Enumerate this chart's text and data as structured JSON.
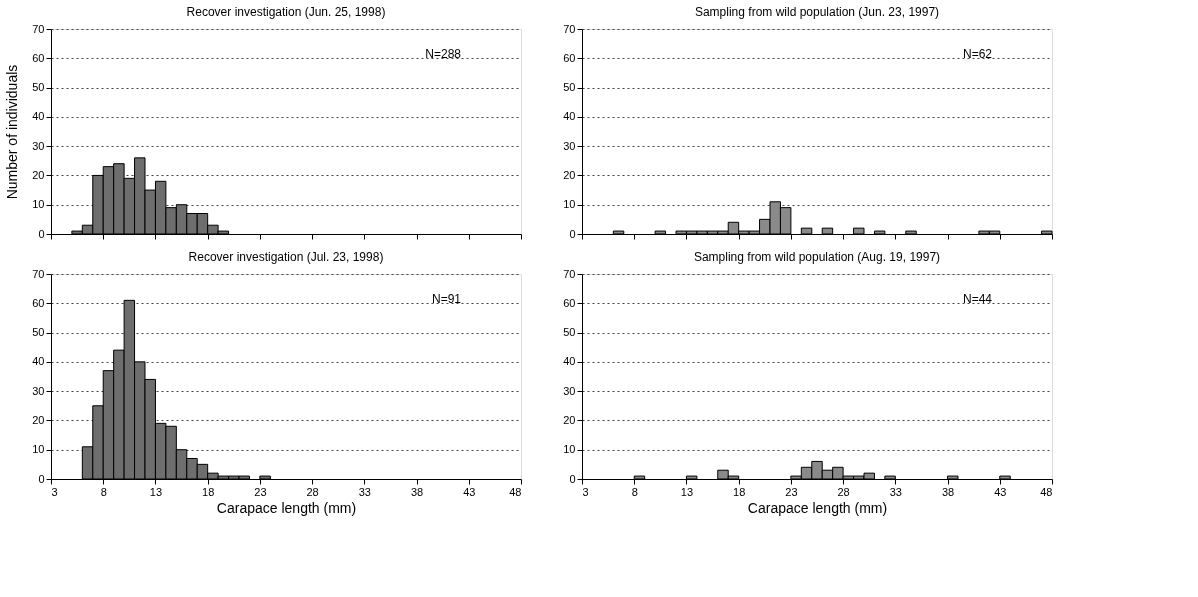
{
  "chart_data": [
    {
      "type": "histogram",
      "title": "Recover investigation (Jun. 25, 1998)",
      "ylabel": "Number of individuals",
      "bins": [
        5,
        6,
        7,
        8,
        9,
        10,
        11,
        12,
        13,
        14,
        15,
        16,
        17,
        18,
        19,
        20
      ],
      "values": [
        1,
        3,
        20,
        23,
        24,
        19,
        26,
        15,
        18,
        9,
        10,
        7,
        7,
        3,
        1
      ],
      "color": "#6e6e6e",
      "xlim": [
        3,
        48
      ],
      "xticks": [
        3,
        8,
        13,
        18,
        23,
        28,
        33,
        38,
        43,
        48
      ],
      "ylim": [
        0,
        70
      ],
      "yticks": [
        0,
        10,
        20,
        30,
        40,
        50,
        60,
        70
      ],
      "grid": "y",
      "tick_labels": "y",
      "annotations": [
        "N=288"
      ]
    },
    {
      "type": "histogram",
      "title": "Sampling from wild population (Jun. 23, 1997)",
      "bins": [
        6,
        7,
        8,
        9,
        10,
        11,
        12,
        13,
        14,
        15,
        16,
        17,
        18,
        19,
        20,
        21,
        22,
        23,
        24,
        25,
        26,
        27,
        28,
        29,
        30,
        31,
        32,
        33,
        34,
        35,
        36,
        37,
        38,
        39,
        40,
        41,
        42,
        43,
        44,
        45,
        46,
        47,
        48
      ],
      "values": [
        1,
        0,
        0,
        0,
        1,
        0,
        1,
        1,
        1,
        1,
        1,
        4,
        1,
        1,
        5,
        11,
        9,
        0,
        2,
        0,
        2,
        0,
        0,
        2,
        0,
        1,
        0,
        0,
        1,
        0,
        0,
        0,
        0,
        0,
        0,
        1,
        1,
        0,
        0,
        0,
        0,
        1
      ],
      "color": "#8a8a8a",
      "xlim": [
        3,
        48
      ],
      "xticks": [
        3,
        8,
        13,
        18,
        23,
        28,
        33,
        38,
        43,
        48
      ],
      "ylim": [
        0,
        70
      ],
      "yticks": [
        0,
        10,
        20,
        30,
        40,
        50,
        60,
        70
      ],
      "grid": "y",
      "tick_labels": "y",
      "annotations": [
        "N=62"
      ]
    },
    {
      "type": "histogram",
      "title": "Recover investigation (Jul. 23, 1998)",
      "xlabel": "Carapace length (mm)",
      "bins": [
        6,
        7,
        8,
        9,
        10,
        11,
        12,
        13,
        14,
        15,
        16,
        17,
        18,
        19,
        20,
        21,
        22,
        23,
        24
      ],
      "values": [
        11,
        25,
        37,
        44,
        61,
        40,
        34,
        19,
        18,
        10,
        7,
        5,
        2,
        1,
        1,
        1,
        0,
        1
      ],
      "color": "#6e6e6e",
      "xlim": [
        3,
        48
      ],
      "xticks": [
        3,
        8,
        13,
        18,
        23,
        28,
        33,
        38,
        43,
        48
      ],
      "ylim": [
        0,
        70
      ],
      "yticks": [
        0,
        10,
        20,
        30,
        40,
        50,
        60,
        70
      ],
      "grid": "y",
      "annotations": [
        "N=91"
      ]
    },
    {
      "type": "histogram",
      "title": "Sampling from wild population (Aug. 19, 1997)",
      "xlabel": "Carapace length (mm)",
      "bins": [
        8,
        9,
        10,
        11,
        12,
        13,
        14,
        15,
        16,
        17,
        18,
        19,
        20,
        21,
        22,
        23,
        24,
        25,
        26,
        27,
        28,
        29,
        30,
        31,
        32,
        33,
        34,
        35,
        36,
        37,
        38,
        39,
        40,
        41,
        42,
        43,
        44
      ],
      "values": [
        1,
        0,
        0,
        0,
        0,
        1,
        0,
        0,
        3,
        1,
        0,
        0,
        0,
        0,
        0,
        1,
        4,
        6,
        3,
        4,
        1,
        1,
        2,
        0,
        1,
        0,
        0,
        0,
        0,
        0,
        1,
        0,
        0,
        0,
        0,
        1
      ],
      "color": "#8a8a8a",
      "xlim": [
        3,
        48
      ],
      "xticks": [
        3,
        8,
        13,
        18,
        23,
        28,
        33,
        38,
        43,
        48
      ],
      "ylim": [
        0,
        70
      ],
      "yticks": [
        0,
        10,
        20,
        30,
        40,
        50,
        60,
        70
      ],
      "grid": "y",
      "annotations": [
        "N=44"
      ]
    }
  ]
}
